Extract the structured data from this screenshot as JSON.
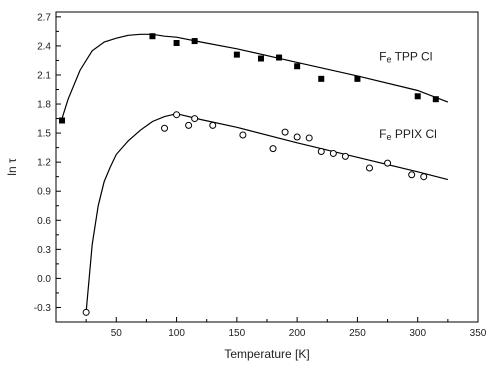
{
  "chart_data": {
    "type": "scatter",
    "title": "",
    "xlabel": "Temperature [K]",
    "ylabel": "ln τ",
    "xlim": [
      0,
      350
    ],
    "ylim": [
      -0.45,
      2.75
    ],
    "xticks": [
      50,
      100,
      150,
      200,
      250,
      300,
      350
    ],
    "xtick_labels": [
      "50",
      "100",
      "150",
      "200",
      "250",
      "300",
      "350"
    ],
    "yticks": [
      -0.3,
      0.0,
      0.3,
      0.6,
      0.9,
      1.2,
      1.5,
      1.8,
      2.1,
      2.4,
      2.7
    ],
    "ytick_labels": [
      "-0.3",
      "0.0",
      "0.3",
      "0.6",
      "0.9",
      "1.2",
      "1.5",
      "1.8",
      "2.1",
      "2.4",
      "2.7"
    ],
    "grid": false,
    "legend": "none",
    "series": [
      {
        "name": "Fe TPP Cl",
        "marker": "filled-square",
        "x": [
          5,
          80,
          100,
          115,
          150,
          170,
          185,
          200,
          220,
          250,
          300,
          315
        ],
        "y": [
          1.63,
          2.5,
          2.43,
          2.45,
          2.31,
          2.27,
          2.28,
          2.19,
          2.06,
          2.06,
          1.88,
          1.85
        ],
        "fit_x": [
          5,
          10,
          20,
          30,
          40,
          50,
          60,
          70,
          80,
          90,
          100,
          120,
          150,
          200,
          250,
          300,
          325
        ],
        "fit_y": [
          1.65,
          1.85,
          2.15,
          2.35,
          2.44,
          2.48,
          2.51,
          2.52,
          2.52,
          2.5,
          2.49,
          2.44,
          2.37,
          2.23,
          2.09,
          1.94,
          1.82
        ],
        "label_parts": [
          "F",
          "e",
          " TPP Cl"
        ],
        "label_at": {
          "x": 268,
          "y": 2.25
        }
      },
      {
        "name": "Fe PPIX Cl",
        "marker": "open-circle",
        "x": [
          25,
          90,
          100,
          110,
          115,
          130,
          155,
          180,
          190,
          200,
          210,
          220,
          230,
          240,
          260,
          275,
          295,
          305
        ],
        "y": [
          -0.35,
          1.55,
          1.69,
          1.58,
          1.65,
          1.58,
          1.48,
          1.34,
          1.51,
          1.46,
          1.45,
          1.31,
          1.29,
          1.26,
          1.14,
          1.19,
          1.07,
          1.05
        ],
        "fit_x": [
          25,
          30,
          35,
          40,
          45,
          50,
          60,
          70,
          80,
          90,
          100,
          120,
          150,
          200,
          250,
          300,
          325
        ],
        "fit_y": [
          -0.35,
          0.35,
          0.75,
          1.0,
          1.15,
          1.28,
          1.42,
          1.53,
          1.62,
          1.67,
          1.7,
          1.64,
          1.56,
          1.4,
          1.25,
          1.1,
          1.02
        ],
        "label_parts": [
          "F",
          "e",
          " PPIX Cl"
        ],
        "label_at": {
          "x": 268,
          "y": 1.45
        }
      }
    ]
  }
}
